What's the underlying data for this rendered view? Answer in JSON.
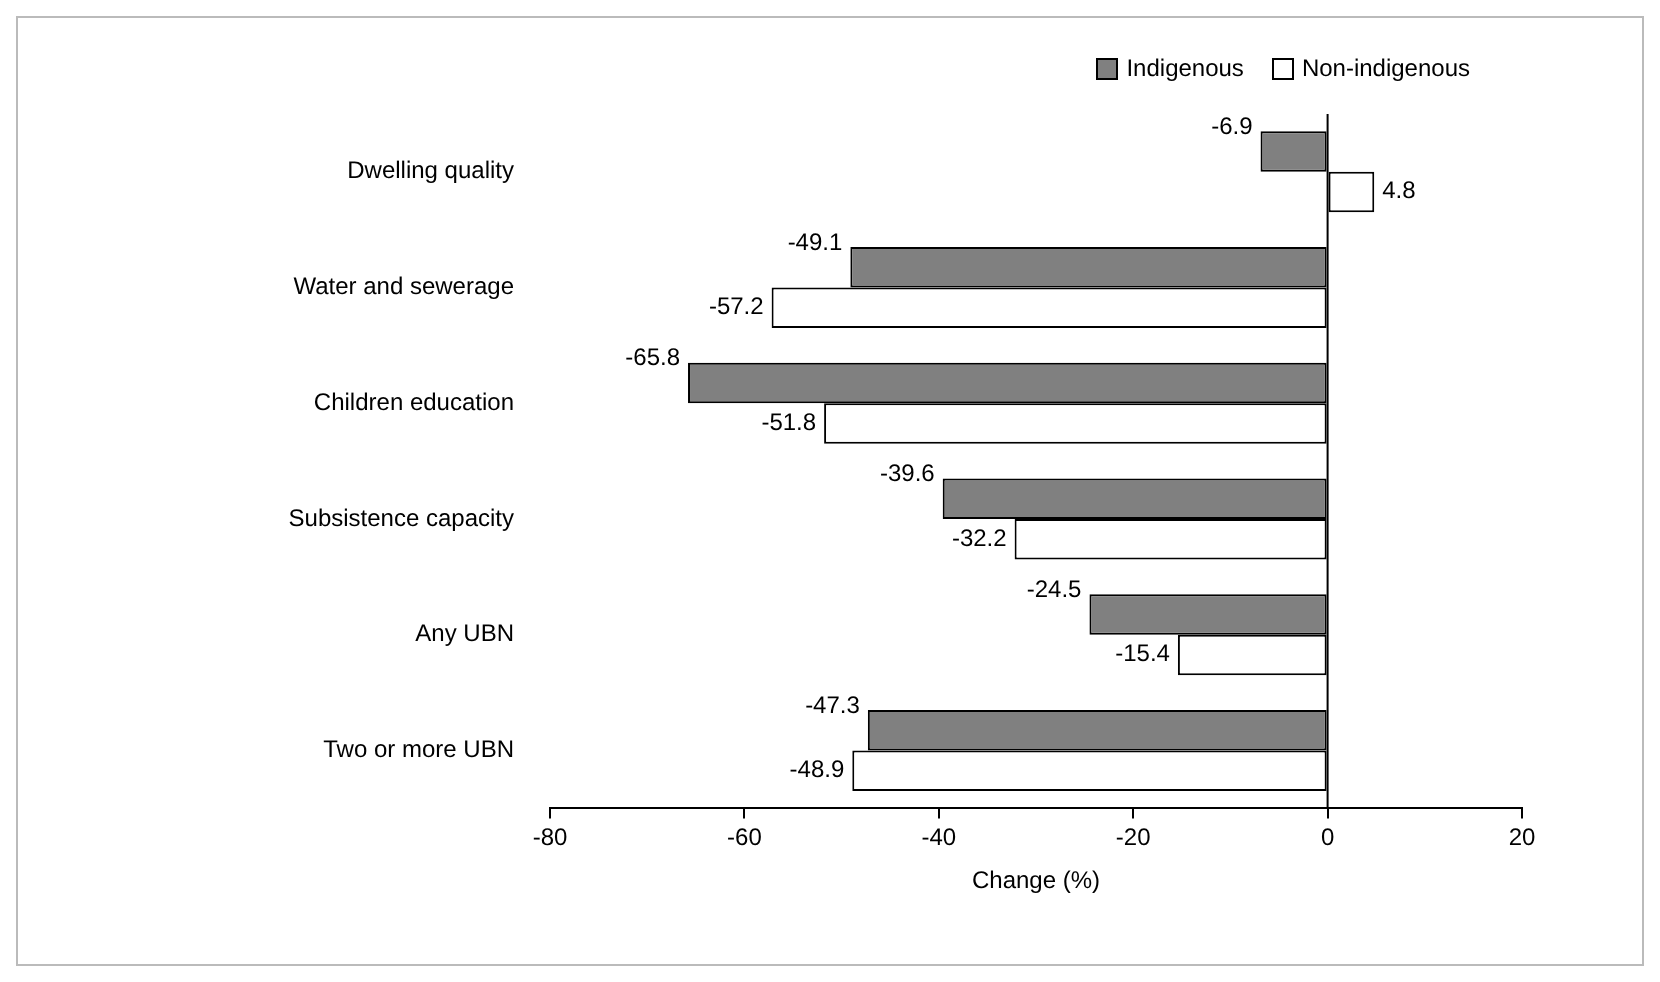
{
  "chart_data": {
    "type": "bar",
    "orientation": "horizontal",
    "categories": [
      "Dwelling quality",
      "Water and sewerage",
      "Children education",
      "Subsistence capacity",
      "Any UBN",
      "Two or more UBN"
    ],
    "series": [
      {
        "name": "Indigenous",
        "color": "#808080",
        "values": [
          -6.9,
          -49.1,
          -65.8,
          -39.6,
          -24.5,
          -47.3
        ]
      },
      {
        "name": "Non-indigenous",
        "color": "#ffffff",
        "values": [
          4.8,
          -57.2,
          -51.8,
          -32.2,
          -15.4,
          -48.9
        ]
      }
    ],
    "xlabel": "Change (%)",
    "xlim": [
      -80,
      20
    ],
    "xticks": [
      -80,
      -60,
      -40,
      -20,
      0,
      20
    ],
    "ref_lines": [
      {
        "axis": "x",
        "value": 0,
        "color": "#000000"
      }
    ],
    "grid": false,
    "legend": "top right",
    "data_labels": true
  }
}
